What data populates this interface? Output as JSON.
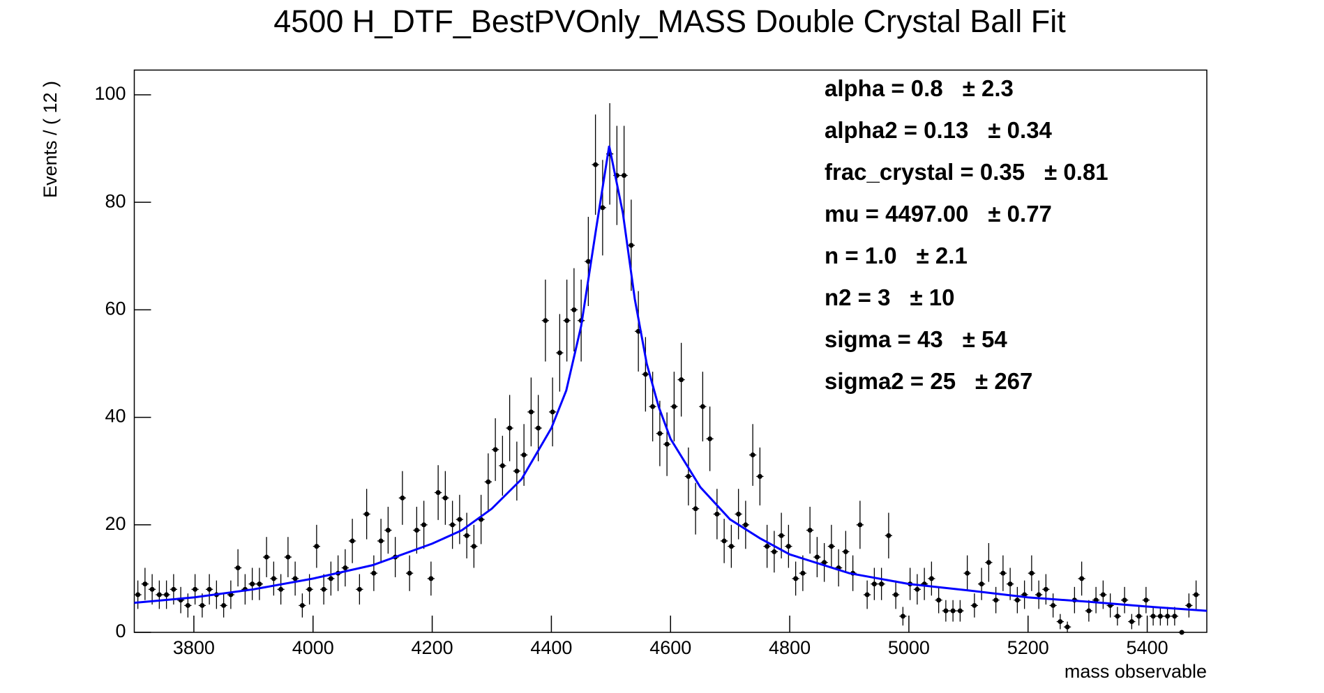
{
  "chart_data": {
    "type": "histfit",
    "title": "4500 H_DTF_BestPVOnly_MASS Double Crystal Ball Fit",
    "xlabel": "mass observable",
    "ylabel": "Events / ( 12 )",
    "xlim": [
      3700,
      5500
    ],
    "ylim": [
      0,
      104.6
    ],
    "xticks": [
      3800,
      4000,
      4200,
      4400,
      4600,
      4800,
      5000,
      5200,
      5400
    ],
    "yticks": [
      0,
      20,
      40,
      60,
      80,
      100
    ],
    "bin_start": 3706,
    "bin_width": 12,
    "points": {
      "name": "data",
      "color": "#000000",
      "values": [
        7,
        9,
        8,
        7,
        7,
        8,
        6,
        5,
        8,
        5,
        8,
        7,
        5,
        7,
        12,
        8,
        9,
        9,
        14,
        10,
        8,
        14,
        10,
        5,
        8,
        16,
        8,
        10,
        11,
        12,
        17,
        8,
        22,
        11,
        17,
        19,
        14,
        25,
        11,
        19,
        20,
        10,
        26,
        25,
        20,
        21,
        18,
        16,
        21,
        28,
        34,
        31,
        38,
        30,
        33,
        41,
        38,
        58,
        41,
        52,
        58,
        60,
        58,
        69,
        87,
        79,
        89,
        85,
        85,
        72,
        56,
        48,
        42,
        37,
        35,
        42,
        47,
        29,
        23,
        42,
        36,
        22,
        17,
        16,
        22,
        20,
        33,
        29,
        16,
        15,
        18,
        16,
        10,
        11,
        19,
        14,
        13,
        16,
        12,
        15,
        11,
        20,
        7,
        9,
        9,
        18,
        7,
        3,
        9,
        8,
        9,
        10,
        6,
        4,
        4,
        4,
        11,
        5,
        9,
        13,
        6,
        11,
        9,
        6,
        7,
        11,
        7,
        8,
        5,
        2,
        1,
        6,
        10,
        4,
        6,
        7,
        5,
        3,
        6,
        2,
        3,
        6,
        3,
        3,
        3,
        3,
        0,
        5,
        7
      ]
    },
    "fit": {
      "name": "fit",
      "color": "#0000ff",
      "x": [
        3700,
        3800,
        3900,
        4000,
        4100,
        4200,
        4250,
        4300,
        4350,
        4400,
        4425,
        4450,
        4475,
        4497,
        4520,
        4540,
        4560,
        4580,
        4600,
        4650,
        4700,
        4750,
        4800,
        4900,
        5000,
        5100,
        5200,
        5300,
        5400,
        5500
      ],
      "values": [
        5.5,
        6.5,
        8,
        10,
        12.5,
        16.5,
        19,
        23,
        28.5,
        38,
        45,
        57,
        75,
        90.5,
        78,
        62,
        50,
        42,
        36,
        27,
        21,
        17.5,
        14.5,
        11,
        9,
        7.8,
        6.5,
        5.7,
        4.8,
        4.0
      ]
    },
    "parameters": [
      {
        "label": "alpha =  0.8",
        "error": "± 2.3"
      },
      {
        "label": "alpha2 =  0.13",
        "error": "± 0.34"
      },
      {
        "label": "frac_crystal =  0.35",
        "error": "± 0.81"
      },
      {
        "label": "mu =  4497.00",
        "error": "± 0.77"
      },
      {
        "label": "n =  1.0",
        "error": "± 2.1"
      },
      {
        "label": "n2 =  3",
        "error": "± 10"
      },
      {
        "label": "sigma =  43",
        "error": "± 54"
      },
      {
        "label": "sigma2 =  25",
        "error": "± 267"
      }
    ]
  }
}
